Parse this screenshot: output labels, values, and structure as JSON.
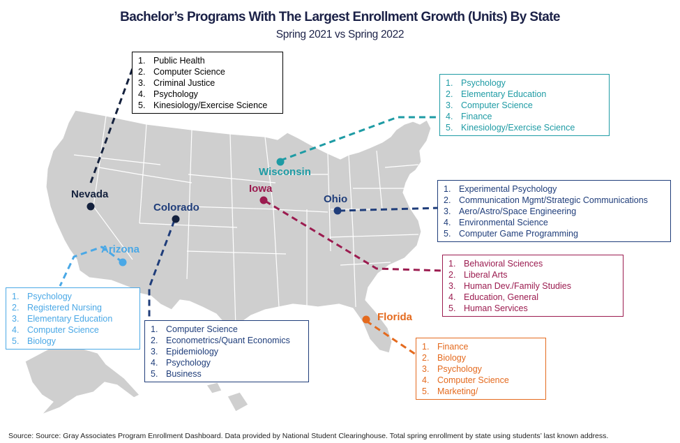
{
  "title": "Bachelor’s Programs With The Largest Enrollment Growth (Units) By State",
  "subtitle": "Spring 2021 vs Spring 2022",
  "states": [
    {
      "key": "nevada",
      "name": "Nevada",
      "color": "#14213d",
      "programs": [
        "Public Health",
        "Computer Science",
        "Criminal Justice",
        "Psychology",
        "Kinesiology/Exercise Science"
      ]
    },
    {
      "key": "wisconsin",
      "name": "Wisconsin",
      "color": "#1e9ba4",
      "programs": [
        "Psychology",
        "Elementary Education",
        "Computer Science",
        "Finance",
        "Kinesiology/Exercise Science"
      ]
    },
    {
      "key": "ohio",
      "name": "Ohio",
      "color": "#1f3d7a",
      "programs": [
        "Experimental Psychology",
        "Communication Mgmt/Strategic Communications",
        "Aero/Astro/Space Engineering",
        "Environmental Science",
        "Computer Game Programming"
      ]
    },
    {
      "key": "iowa",
      "name": "Iowa",
      "color": "#9b1b4f",
      "programs": [
        "Behavioral Sciences",
        "Liberal Arts",
        "Human Dev./Family Studies",
        "Education, General",
        "Human Services"
      ]
    },
    {
      "key": "florida",
      "name": "Florida",
      "color": "#e46a1e",
      "programs": [
        "Finance",
        "Biology",
        "Psychology",
        "Computer Science",
        "Marketing/"
      ]
    },
    {
      "key": "colorado",
      "name": "Colorado",
      "color": "#1f3d7a",
      "programs": [
        "Computer Science",
        "Econometrics/Quant Economics",
        "Epidemiology",
        "Psychology",
        "Business"
      ]
    },
    {
      "key": "arizona",
      "name": "Arizona",
      "color": "#4aa8e6",
      "programs": [
        "Psychology",
        "Registered Nursing",
        "Elementary Education",
        "Computer Science",
        "Biology"
      ]
    }
  ],
  "source": "Source:  Source: Gray Associates Program Enrollment Dashboard.  Data provided by National Student Clearinghouse.  Total spring enrollment by state using students’ last known address."
}
